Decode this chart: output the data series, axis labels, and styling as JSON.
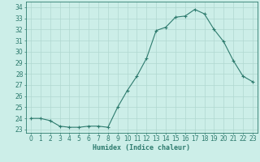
{
  "x": [
    0,
    1,
    2,
    3,
    4,
    5,
    6,
    7,
    8,
    9,
    10,
    11,
    12,
    13,
    14,
    15,
    16,
    17,
    18,
    19,
    20,
    21,
    22,
    23
  ],
  "y": [
    24.0,
    24.0,
    23.8,
    23.3,
    23.2,
    23.2,
    23.3,
    23.3,
    23.2,
    25.0,
    26.5,
    27.8,
    29.4,
    31.9,
    32.2,
    33.1,
    33.2,
    33.8,
    33.4,
    32.0,
    30.9,
    29.2,
    27.8,
    27.3
  ],
  "bg_color": "#cceee8",
  "line_color": "#2e7b6e",
  "grid_color": "#b0d8d0",
  "ylabel_ticks": [
    23,
    24,
    25,
    26,
    27,
    28,
    29,
    30,
    31,
    32,
    33,
    34
  ],
  "ylim": [
    22.7,
    34.5
  ],
  "xlim": [
    -0.5,
    23.5
  ],
  "xlabel": "Humidex (Indice chaleur)",
  "xlabel_fontsize": 6,
  "tick_fontsize": 5.5
}
